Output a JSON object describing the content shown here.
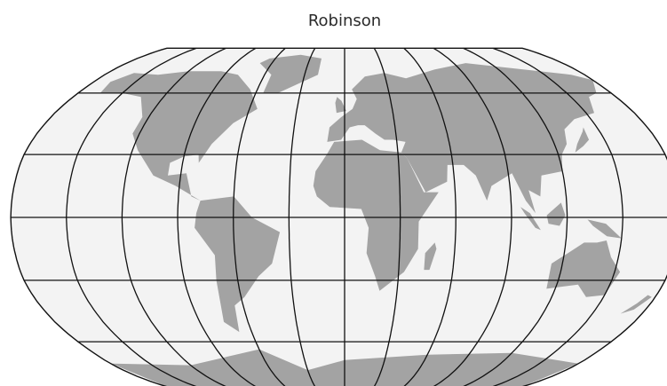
{
  "title": "Robinson"
}
